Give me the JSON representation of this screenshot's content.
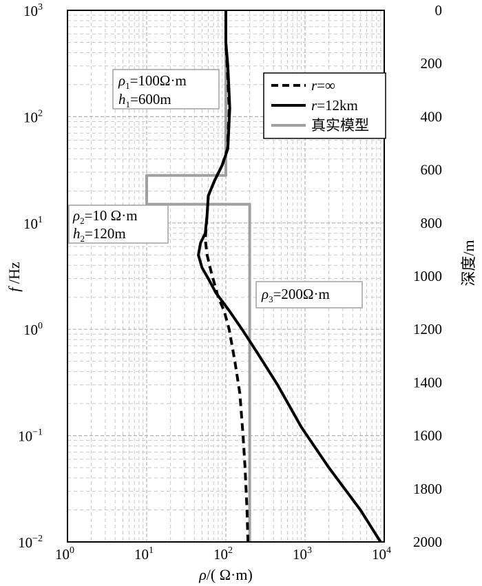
{
  "chart_data": {
    "type": "line",
    "title": "",
    "xlabel": "ρ/( Ω·m)",
    "ylabel": "f /Hz",
    "y2label": "深度/m",
    "xscale": "log",
    "yscale": "log",
    "xlim": [
      1,
      10000
    ],
    "ylim": [
      0.01,
      1000
    ],
    "y2lim": [
      0,
      2000
    ],
    "grid": true,
    "legend_position": "top-right",
    "x_tick_labels": [
      {
        "base": "10",
        "exp": "0"
      },
      {
        "base": "10",
        "exp": "1"
      },
      {
        "base": "10",
        "exp": "2"
      },
      {
        "base": "10",
        "exp": "3"
      },
      {
        "base": "10",
        "exp": "4"
      }
    ],
    "y_tick_labels": [
      {
        "base": "10",
        "exp": "−2"
      },
      {
        "base": "10",
        "exp": "−1"
      },
      {
        "base": "10",
        "exp": "0"
      },
      {
        "base": "10",
        "exp": "1"
      },
      {
        "base": "10",
        "exp": "2"
      },
      {
        "base": "10",
        "exp": "3"
      }
    ],
    "y2_tick_labels": [
      "0",
      "200",
      "400",
      "600",
      "800",
      "1000",
      "1200",
      "1400",
      "1600",
      "1800",
      "2000"
    ],
    "series": [
      {
        "name": "r=∞",
        "style": "dashed",
        "color": "#000000",
        "points": [
          [
            100,
            1000
          ],
          [
            100,
            500
          ],
          [
            104,
            300
          ],
          [
            110,
            120
          ],
          [
            105,
            50
          ],
          [
            90,
            35
          ],
          [
            72,
            25
          ],
          [
            60,
            18
          ],
          [
            58,
            12
          ],
          [
            55,
            7
          ],
          [
            58,
            5
          ],
          [
            65,
            3.5
          ],
          [
            80,
            2
          ],
          [
            95,
            1.5
          ],
          [
            110,
            1
          ],
          [
            130,
            0.5
          ],
          [
            150,
            0.25
          ],
          [
            165,
            0.1
          ],
          [
            175,
            0.05
          ],
          [
            185,
            0.02
          ],
          [
            190,
            0.01
          ]
        ]
      },
      {
        "name": "r=12km",
        "style": "solid",
        "color": "#000000",
        "points": [
          [
            100,
            1000
          ],
          [
            100,
            500
          ],
          [
            106,
            300
          ],
          [
            112,
            120
          ],
          [
            106,
            50
          ],
          [
            90,
            35
          ],
          [
            72,
            25
          ],
          [
            60,
            18
          ],
          [
            58,
            12
          ],
          [
            55,
            8
          ],
          [
            48,
            6.5
          ],
          [
            45,
            5
          ],
          [
            50,
            3.8
          ],
          [
            60,
            3
          ],
          [
            75,
            2.2
          ],
          [
            110,
            1.5
          ],
          [
            160,
            1
          ],
          [
            250,
            0.6
          ],
          [
            450,
            0.3
          ],
          [
            900,
            0.12
          ],
          [
            2000,
            0.05
          ],
          [
            5000,
            0.02
          ],
          [
            9000,
            0.01
          ]
        ]
      },
      {
        "name": "真实模型",
        "style": "solid",
        "color": "#a0a0a0",
        "points": [
          [
            100,
            1000
          ],
          [
            100,
            28
          ],
          [
            10,
            28
          ],
          [
            10,
            15
          ],
          [
            200,
            15
          ],
          [
            200,
            0.01
          ]
        ]
      }
    ],
    "annotations": [
      {
        "id": "rho1",
        "lines": [
          {
            "sym": "ρ",
            "sub": "1",
            "rest": "=100Ω·m"
          },
          {
            "sym": "h",
            "sub": "1",
            "rest": "=600m"
          }
        ]
      },
      {
        "id": "rho2",
        "lines": [
          {
            "sym": "ρ",
            "sub": "2",
            "rest": "=10 Ω·m"
          },
          {
            "sym": "h",
            "sub": "2",
            "rest": "=120m"
          }
        ]
      },
      {
        "id": "rho3",
        "lines": [
          {
            "sym": "ρ",
            "sub": "3",
            "rest": "=200Ω·m"
          }
        ]
      }
    ],
    "colors": {
      "major_grid": "#b0b0b0",
      "minor_grid": "#c8c8c8",
      "axis": "#000000"
    }
  }
}
